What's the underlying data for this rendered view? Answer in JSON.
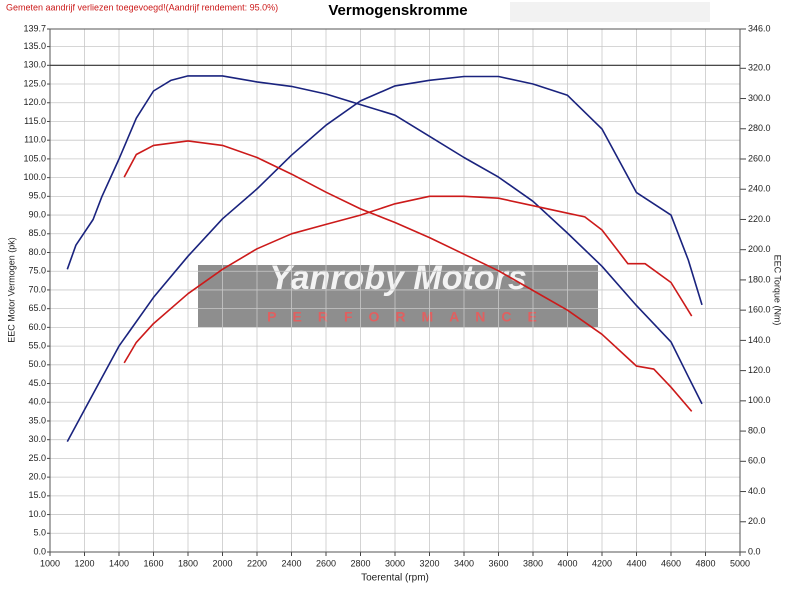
{
  "chart_data": {
    "type": "line",
    "note_text": "Gemeten aandrijf verliezen toegevoegd!(Aandrijf rendement: 95.0%)",
    "title": "Vermogenskromme",
    "xlabel": "Toerental (rpm)",
    "ylabel": "EEC Motor Vermogen (pk)",
    "y2label": "EEC Torque (Nm)",
    "watermark": {
      "title": "Yanroby Motors",
      "subtitle": "PERFORMANCE"
    },
    "grid": true,
    "reference_line": 130,
    "xlim": [
      1000,
      5000
    ],
    "xticks": [
      1000,
      1200,
      1400,
      1600,
      1800,
      2000,
      2200,
      2400,
      2600,
      2800,
      3000,
      3200,
      3400,
      3600,
      3800,
      4000,
      4200,
      4400,
      4600,
      4800,
      5000
    ],
    "ylim": [
      0,
      139.7
    ],
    "yticks": [
      {
        "value": 0,
        "label": "0.0"
      },
      {
        "value": 5,
        "label": "5.0"
      },
      {
        "value": 10,
        "label": "10.0"
      },
      {
        "value": 15,
        "label": "15.0"
      },
      {
        "value": 20,
        "label": "20.0"
      },
      {
        "value": 25,
        "label": "25.0"
      },
      {
        "value": 30,
        "label": "30.0"
      },
      {
        "value": 35,
        "label": "35.0"
      },
      {
        "value": 40,
        "label": "40.0"
      },
      {
        "value": 45,
        "label": "45.0"
      },
      {
        "value": 50,
        "label": "50.0"
      },
      {
        "value": 55,
        "label": "55.0"
      },
      {
        "value": 60,
        "label": "60.0"
      },
      {
        "value": 65,
        "label": "65.0"
      },
      {
        "value": 70,
        "label": "70.0"
      },
      {
        "value": 75,
        "label": "75.0"
      },
      {
        "value": 80,
        "label": "80.0"
      },
      {
        "value": 85,
        "label": "85.0"
      },
      {
        "value": 90,
        "label": "90.0"
      },
      {
        "value": 95,
        "label": "95.0"
      },
      {
        "value": 100,
        "label": "100.0"
      },
      {
        "value": 105,
        "label": "105.0"
      },
      {
        "value": 110,
        "label": "110.0"
      },
      {
        "value": 115,
        "label": "115.0"
      },
      {
        "value": 120,
        "label": "120.0"
      },
      {
        "value": 125,
        "label": "125.0"
      },
      {
        "value": 130,
        "label": "130.0"
      },
      {
        "value": 135,
        "label": "135.0"
      },
      139.7
    ],
    "y2lim": [
      0,
      346
    ],
    "y2ticks": [
      {
        "value": 0,
        "label": "0.0"
      },
      {
        "value": 20,
        "label": "20.0"
      },
      {
        "value": 40,
        "label": "40.0"
      },
      {
        "value": 60,
        "label": "60.0"
      },
      {
        "value": 80,
        "label": "80.0"
      },
      {
        "value": 100,
        "label": "100.0"
      },
      {
        "value": 120,
        "label": "120.0"
      },
      {
        "value": 140,
        "label": "140.0"
      },
      {
        "value": 160,
        "label": "160.0"
      },
      {
        "value": 180,
        "label": "180.0"
      },
      {
        "value": 200,
        "label": "200.0"
      },
      {
        "value": 220,
        "label": "220.0"
      },
      {
        "value": 240,
        "label": "240.0"
      },
      {
        "value": 260,
        "label": "260.0"
      },
      {
        "value": 280,
        "label": "280.0"
      },
      {
        "value": 300,
        "label": "300.0"
      },
      {
        "value": 320,
        "label": "320.0"
      },
      {
        "value": 346,
        "label": "346.0"
      }
    ],
    "series": [
      {
        "color": "#1a237e",
        "x": [
          1100,
          1200,
          1400,
          1600,
          1800,
          2000,
          2200,
          2400,
          2600,
          2800,
          3000,
          3200,
          3400,
          3600,
          3800,
          4000,
          4200,
          4400,
          4600,
          4700,
          4780
        ],
        "values": [
          29.5,
          38,
          55,
          68,
          79,
          89,
          97,
          106,
          114,
          120.5,
          124.5,
          126,
          127,
          127,
          125,
          122,
          113,
          96,
          90,
          78,
          66
        ]
      },
      {
        "color": "#1a237e",
        "axis": "y2",
        "x": [
          1100,
          1150,
          1250,
          1300,
          1400,
          1500,
          1600,
          1700,
          1800,
          2000,
          2200,
          2400,
          2600,
          2800,
          3000,
          3200,
          3400,
          3600,
          3800,
          4000,
          4200,
          4400,
          4600,
          4700,
          4780
        ],
        "values": [
          187,
          203,
          220,
          235,
          260,
          287,
          305,
          312,
          315,
          315,
          311,
          308,
          303,
          296,
          289,
          275,
          261,
          248,
          232,
          211,
          189,
          163,
          139,
          116,
          98
        ]
      },
      {
        "color": "#cc1a1a",
        "x": [
          1430,
          1500,
          1600,
          1800,
          2000,
          2200,
          2400,
          2600,
          2800,
          3000,
          3200,
          3400,
          3600,
          3800,
          4000,
          4100,
          4200,
          4350,
          4450,
          4600,
          4720
        ],
        "values": [
          50.5,
          56,
          61,
          69,
          75.5,
          81,
          85,
          87.5,
          90,
          93,
          95,
          95,
          94.5,
          92.5,
          90.5,
          89.5,
          86,
          77,
          77,
          72,
          63
        ]
      },
      {
        "color": "#cc1a1a",
        "axis": "y2",
        "x": [
          1430,
          1500,
          1600,
          1800,
          2000,
          2200,
          2400,
          2600,
          2800,
          3000,
          3200,
          3400,
          3600,
          3800,
          4000,
          4200,
          4400,
          4500,
          4600,
          4720
        ],
        "values": [
          248,
          263,
          269,
          272,
          269,
          261,
          250,
          238,
          227,
          218,
          208,
          197,
          186,
          173,
          160,
          144,
          123,
          121,
          109,
          93
        ]
      }
    ]
  }
}
